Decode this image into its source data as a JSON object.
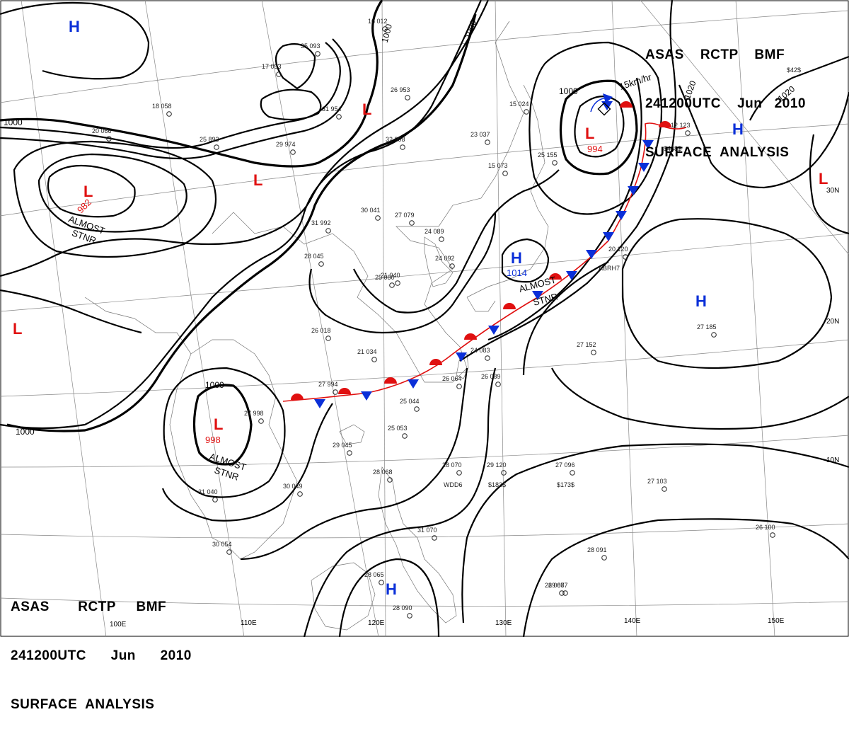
{
  "header_top_right": {
    "line1": "ASAS    RCTP    BMF",
    "line2": "241200UTC    Jun   2010",
    "line3": "SURFACE  ANALYSIS"
  },
  "header_bottom_left": {
    "line1": "ASAS       RCTP     BMF",
    "line2": "241200UTC      Jun      2010",
    "line3": "SURFACE  ANALYSIS"
  },
  "longitude_labels": [
    "100E",
    "110E",
    "120E",
    "130E",
    "140E",
    "150E"
  ],
  "latitude_labels": [
    "30N",
    "20N",
    "10N"
  ],
  "isobar_labels": [
    "1000",
    "1000",
    "1000",
    "1000",
    "1000",
    "1000",
    "1000",
    "1020",
    "1020"
  ],
  "pressure_centers": [
    {
      "type": "H",
      "value": "",
      "color": "#0a2fd8"
    },
    {
      "type": "L",
      "value": "",
      "color": "#e01010"
    },
    {
      "type": "L",
      "value": "",
      "color": "#e01010"
    },
    {
      "type": "L",
      "value": "982",
      "color": "#e01010",
      "note": "ALMOST STNR"
    },
    {
      "type": "L",
      "value": "",
      "color": "#e01010"
    },
    {
      "type": "L",
      "value": "998",
      "color": "#e01010",
      "note": "ALMOST STNR"
    },
    {
      "type": "L",
      "value": "994",
      "color": "#e01010"
    },
    {
      "type": "H",
      "value": "1014",
      "color": "#0a2fd8",
      "note": "ALMOST STNR"
    },
    {
      "type": "H",
      "value": "",
      "color": "#0a2fd8"
    },
    {
      "type": "H",
      "value": "",
      "color": "#0a2fd8"
    },
    {
      "type": "L",
      "value": "",
      "color": "#e01010"
    },
    {
      "type": "H",
      "value": "",
      "color": "#0a2fd8"
    }
  ],
  "motion_label": "15km/hr",
  "stations": [
    "16  012",
    "35  093",
    "17  093",
    "26  953",
    "18  058",
    "20  066",
    "25  893",
    "29  974",
    "32  998",
    "31  954",
    "23  037",
    "15  073",
    "15  024",
    "25  155",
    "30  041",
    "27  079",
    "24  089",
    "28  045",
    "31  992",
    "21  040",
    "24  092",
    "27  994",
    "25  080",
    "26  018",
    "21  034",
    "24  083",
    "26  064",
    "26  089",
    "27  998",
    "29  045",
    "25  044",
    "25  053",
    "28  068",
    "28  070",
    "29  120",
    "27  096",
    "27  103",
    "27  152",
    "27  185",
    "28  087",
    "28  091",
    "26  100",
    "31  070",
    "30  054",
    "30  049",
    "31  040",
    "28  065",
    "28  090",
    "29  087",
    "20  120",
    "12  123"
  ],
  "station_codes": [
    "WDD6",
    "$183$",
    "$173$",
    "ABRH7",
    "$438$",
    "$42$"
  ],
  "colors": {
    "warm_front": "#e01010",
    "cold_front": "#0a2fd8",
    "isobar": "#000000",
    "coast": "#777777",
    "grid": "#888888"
  }
}
